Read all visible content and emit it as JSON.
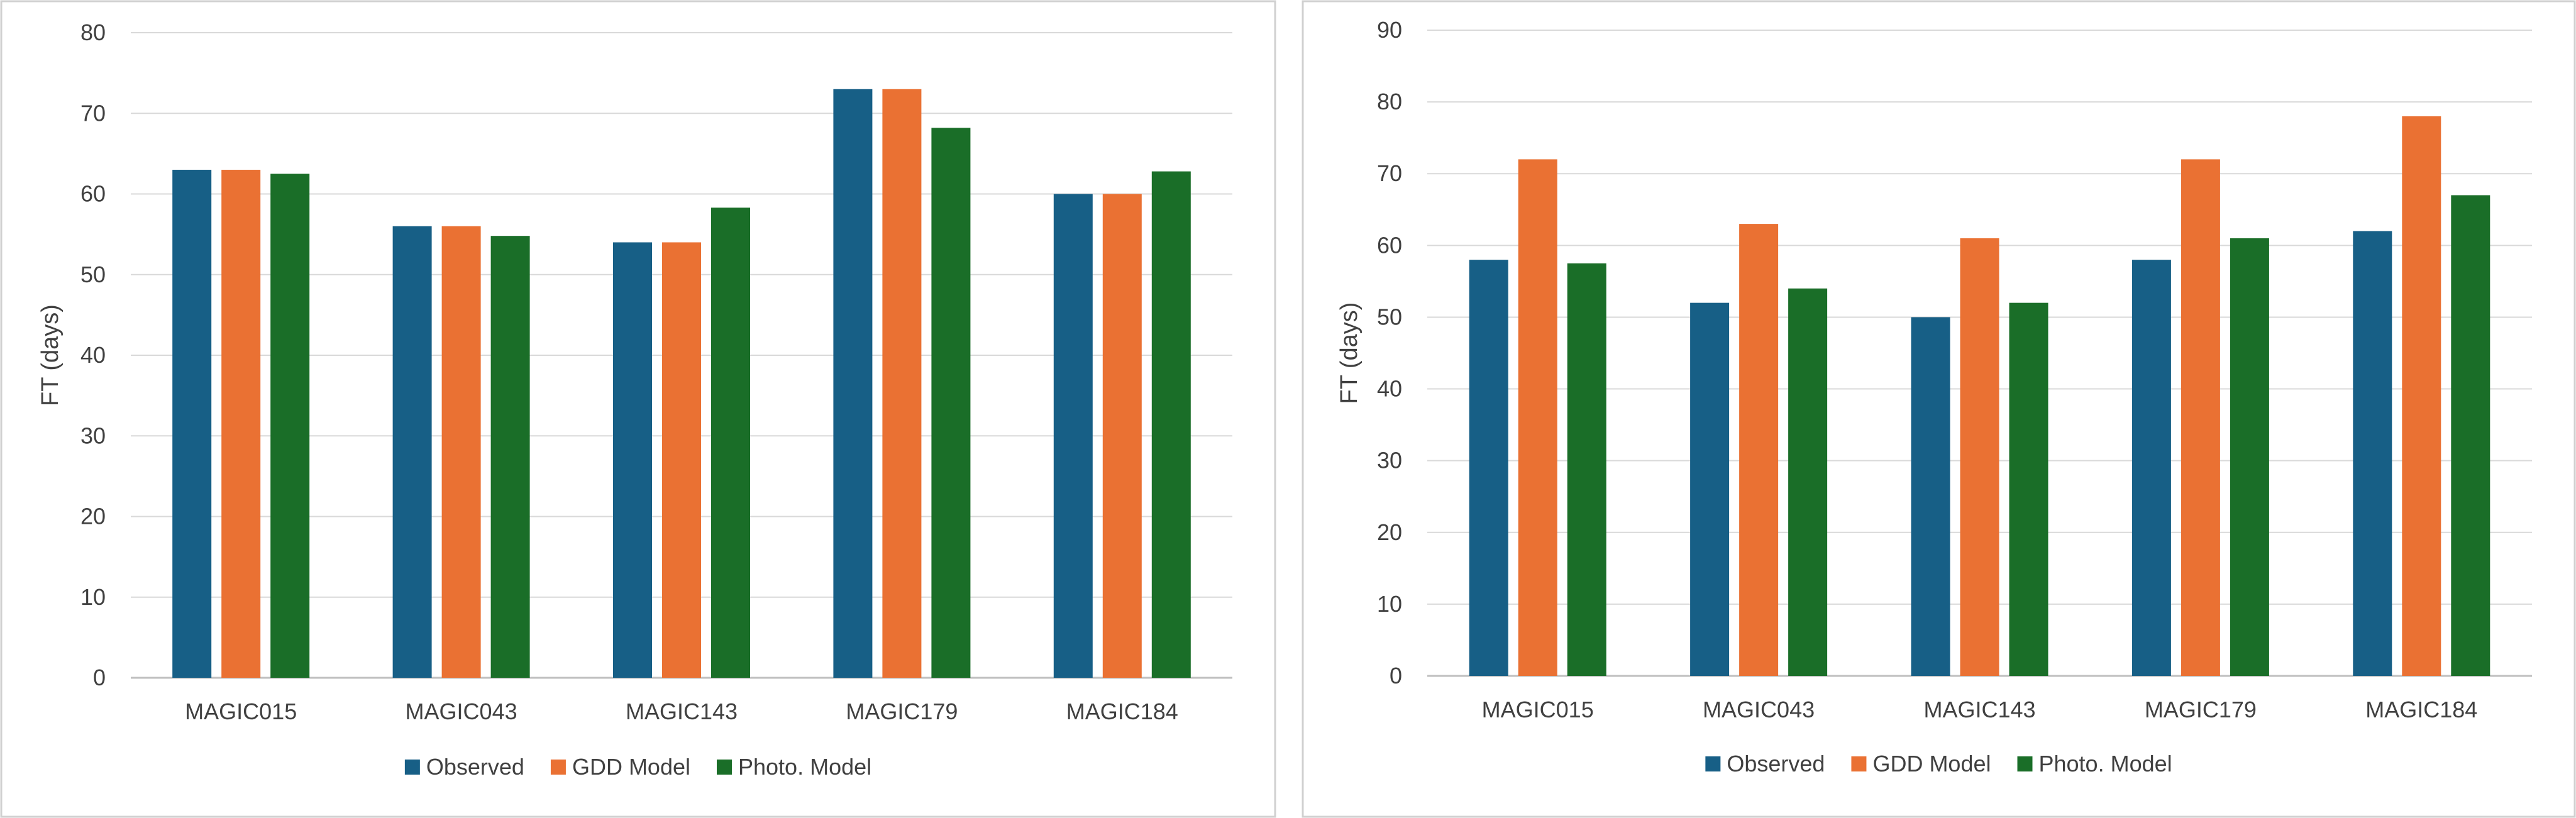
{
  "chart_data": [
    {
      "type": "bar",
      "title": "",
      "xlabel": "",
      "ylabel": "FT (days)",
      "ylim": [
        0,
        80
      ],
      "yticks": [
        0,
        10,
        20,
        30,
        40,
        50,
        60,
        70,
        80
      ],
      "categories": [
        "MAGIC015",
        "MAGIC043",
        "MAGIC143",
        "MAGIC179",
        "MAGIC184"
      ],
      "series": [
        {
          "name": "Observed",
          "color": "#175f86",
          "values": [
            63,
            56,
            54,
            73,
            60
          ]
        },
        {
          "name": "GDD Model",
          "color": "#ea7133",
          "values": [
            63,
            56,
            54,
            73,
            60
          ]
        },
        {
          "name": "Photo. Model",
          "color": "#1a6e28",
          "values": [
            62.5,
            54.8,
            58.3,
            68.2,
            62.8
          ]
        }
      ],
      "grid": true,
      "legend_position": "bottom"
    },
    {
      "type": "bar",
      "title": "",
      "xlabel": "",
      "ylabel": "FT (days)",
      "ylim": [
        0,
        90
      ],
      "yticks": [
        0,
        10,
        20,
        30,
        40,
        50,
        60,
        70,
        80,
        90
      ],
      "categories": [
        "MAGIC015",
        "MAGIC043",
        "MAGIC143",
        "MAGIC179",
        "MAGIC184"
      ],
      "series": [
        {
          "name": "Observed",
          "color": "#175f86",
          "values": [
            58,
            52,
            50,
            58,
            62
          ]
        },
        {
          "name": "GDD Model",
          "color": "#ea7133",
          "values": [
            72,
            63,
            61,
            72,
            78
          ]
        },
        {
          "name": "Photo. Model",
          "color": "#1a6e28",
          "values": [
            57.5,
            54,
            52,
            61,
            67
          ]
        }
      ],
      "grid": true,
      "legend_position": "bottom"
    }
  ]
}
